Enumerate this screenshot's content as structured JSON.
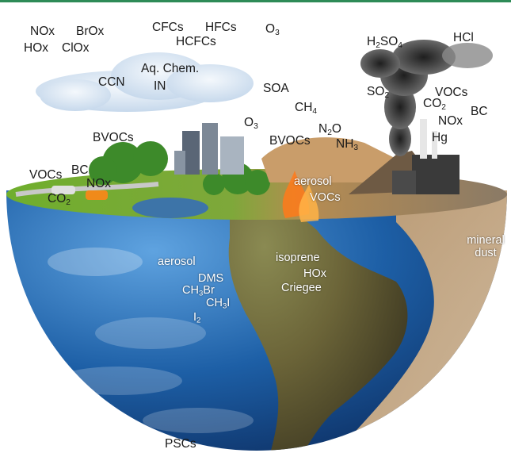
{
  "colors": {
    "top_rule": "#2e8b57",
    "ocean": "#1d5fa6",
    "land": "#9a7b4a",
    "grass": "#5f9a2a",
    "smoke": "#2f2f2f",
    "cloud": "#dfeaf5"
  },
  "labels": {
    "nox_top": "NOx",
    "hox_top": "HOx",
    "brox": "BrOx",
    "clox": "ClOx",
    "cfcs": "CFCs",
    "hcfcs": "HCFCs",
    "hfcs": "HFCs",
    "o3_top": {
      "base": "O",
      "sub": "3"
    },
    "ccn": "CCN",
    "aq_chem": "Aq. Chem.",
    "in": "IN",
    "soa": "SOA",
    "ch4": {
      "base": "CH",
      "sub": "4"
    },
    "o3_mid": {
      "base": "O",
      "sub": "3"
    },
    "bvocs_left": "BVOCs",
    "bvocs_mid": "BVOCs",
    "n2o": {
      "base": "N",
      "sub": "2",
      "tail": "O"
    },
    "nh3": {
      "base": "NH",
      "sub": "3"
    },
    "h2so4": {
      "a": "H",
      "s1": "2",
      "b": "SO",
      "s2": "4"
    },
    "hcl": "HCl",
    "so2": {
      "base": "SO",
      "sub": "2"
    },
    "vocs_right": "VOCs",
    "co2_right": {
      "base": "CO",
      "sub": "2"
    },
    "bc_right": "BC",
    "nox_right": "NOx",
    "hg": "Hg",
    "vocs_left": "VOCs",
    "bc_left": "BC",
    "nox_left": "NOx",
    "co2_left": {
      "base": "CO",
      "sub": "2"
    },
    "aerosol_fire": "aerosol",
    "vocs_fire": "VOCs",
    "aerosol_ocean": "aerosol",
    "dms": "DMS",
    "ch3br": {
      "base": "CH",
      "sub": "3",
      "tail": "Br"
    },
    "ch3i": {
      "base": "CH",
      "sub": "3",
      "tail": "I"
    },
    "i2": {
      "base": "I",
      "sub": "2"
    },
    "isoprene": "isoprene",
    "hox_land": "HOx",
    "criegee": "Criegee",
    "mineral_dust": "mineral dust",
    "pscs": "PSCs"
  }
}
